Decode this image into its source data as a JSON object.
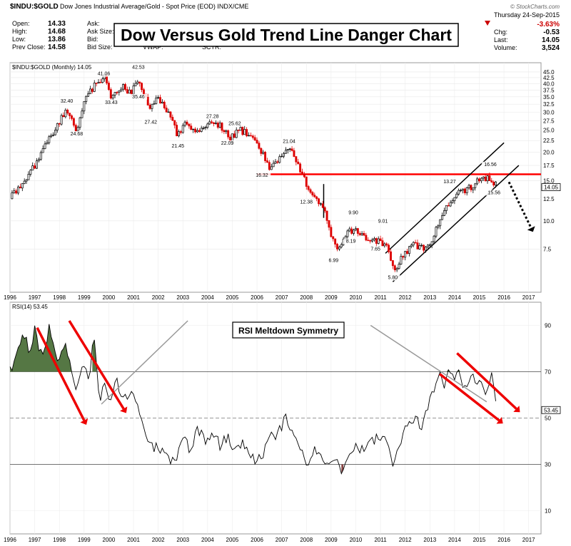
{
  "header": {
    "symbol": "$INDU:$GOLD",
    "description": "Dow Jones Industrial Average/Gold - Spot Price (EOD) INDX/CME",
    "watermark": "© StockCharts.com",
    "date": "Thursday  24-Sep-2015",
    "title_box": "Dow Versus Gold Trend Line Danger Chart",
    "left_quotes": [
      {
        "label": "Open:",
        "value": "14.33"
      },
      {
        "label": "High:",
        "value": "14.68"
      },
      {
        "label": "Low:",
        "value": "13.86"
      },
      {
        "label": "Prev Close:",
        "value": "14.58"
      }
    ],
    "mid_labels": [
      "Ask:",
      "Ask Size:",
      "Bid:",
      "Bid Size:"
    ],
    "mid2_labels": [
      "VWAP:",
      "SCTR:"
    ],
    "right_quotes": [
      {
        "label": "Chg:",
        "value": "-0.53"
      },
      {
        "label": "Last:",
        "value": "14.05"
      },
      {
        "label": "Volume:",
        "value": "3,524"
      }
    ],
    "pct_change": "-3.63%",
    "down_color": "#cc0000"
  },
  "chart_data": [
    {
      "type": "candlestick",
      "legend": "$INDU:$GOLD (Monthly) 14.05",
      "y_scale": "log",
      "ylim": [
        5,
        48
      ],
      "xlim": [
        1996,
        2017.5
      ],
      "y_ticks": [
        45,
        42.5,
        40,
        37.5,
        35,
        32.5,
        30,
        27.5,
        25,
        22.5,
        20,
        17.5,
        15,
        12.5,
        10,
        7.5
      ],
      "y_tick_labels": [
        "45.0",
        "42.5",
        "40.0",
        "37.5",
        "35.0",
        "32.5",
        "30.0",
        "27.5",
        "25.0",
        "22.5",
        "20.0",
        "17.5",
        "15.0",
        "12.5",
        "10.0",
        "7.5"
      ],
      "last_value": "14.05",
      "x_ticks": [
        1996,
        1997,
        1998,
        1999,
        2000,
        2001,
        2002,
        2003,
        2004,
        2005,
        2006,
        2007,
        2008,
        2009,
        2010,
        2011,
        2012,
        2013,
        2014,
        2015,
        2016,
        2017
      ],
      "path": [
        [
          1996.0,
          12.5
        ],
        [
          1996.5,
          14.5
        ],
        [
          1997.0,
          17.5
        ],
        [
          1997.5,
          22.0
        ],
        [
          1998.0,
          27.0
        ],
        [
          1998.3,
          31.0
        ],
        [
          1998.7,
          25.0
        ],
        [
          1999.0,
          33.0
        ],
        [
          1999.4,
          39.0
        ],
        [
          1999.8,
          43.5
        ],
        [
          2000.1,
          34.5
        ],
        [
          2000.5,
          39.0
        ],
        [
          2000.9,
          36.5
        ],
        [
          2001.2,
          41.0
        ],
        [
          2001.7,
          31.0
        ],
        [
          2002.0,
          35.0
        ],
        [
          2002.4,
          30.0
        ],
        [
          2002.8,
          23.5
        ],
        [
          2003.1,
          26.5
        ],
        [
          2003.6,
          24.0
        ],
        [
          2004.0,
          26.5
        ],
        [
          2004.5,
          26.0
        ],
        [
          2004.9,
          23.0
        ],
        [
          2005.3,
          25.0
        ],
        [
          2005.8,
          23.5
        ],
        [
          2006.2,
          20.0
        ],
        [
          2006.5,
          17.0
        ],
        [
          2006.9,
          19.0
        ],
        [
          2007.3,
          20.5
        ],
        [
          2007.6,
          18.5
        ],
        [
          2008.0,
          14.5
        ],
        [
          2008.3,
          13.0
        ],
        [
          2008.7,
          11.5
        ],
        [
          2009.0,
          8.5
        ],
        [
          2009.3,
          7.5
        ],
        [
          2009.7,
          9.0
        ],
        [
          2010.0,
          9.2
        ],
        [
          2010.4,
          8.5
        ],
        [
          2010.8,
          8.2
        ],
        [
          2011.2,
          7.9
        ],
        [
          2011.6,
          6.0
        ],
        [
          2011.9,
          7.0
        ],
        [
          2012.3,
          7.8
        ],
        [
          2012.7,
          7.6
        ],
        [
          2013.0,
          8.0
        ],
        [
          2013.3,
          9.5
        ],
        [
          2013.7,
          11.5
        ],
        [
          2014.0,
          13.0
        ],
        [
          2014.4,
          13.5
        ],
        [
          2014.8,
          14.5
        ],
        [
          2015.1,
          15.5
        ],
        [
          2015.5,
          15.3
        ],
        [
          2015.73,
          14.05
        ]
      ],
      "annotations": [
        {
          "text": "41.06",
          "x": 1999.8,
          "y": 43.5
        },
        {
          "text": "42.53",
          "x": 2001.2,
          "y": 46.5
        },
        {
          "text": "32.40",
          "x": 1998.3,
          "y": 33.0
        },
        {
          "text": "33.43",
          "x": 2000.1,
          "y": 32.5
        },
        {
          "text": "35.46",
          "x": 2001.2,
          "y": 34.5
        },
        {
          "text": "24.68",
          "x": 1998.7,
          "y": 23.7
        },
        {
          "text": "27.42",
          "x": 2001.7,
          "y": 26.7
        },
        {
          "text": "21.45",
          "x": 2002.8,
          "y": 21.0
        },
        {
          "text": "27.28",
          "x": 2004.2,
          "y": 28.3
        },
        {
          "text": "25.62",
          "x": 2005.1,
          "y": 26.3
        },
        {
          "text": "22.09",
          "x": 2004.8,
          "y": 21.6
        },
        {
          "text": "21.04",
          "x": 2007.3,
          "y": 22.0
        },
        {
          "text": "16.32",
          "x": 2006.2,
          "y": 15.6
        },
        {
          "text": "12.38",
          "x": 2008.0,
          "y": 11.9
        },
        {
          "text": "9.90",
          "x": 2009.9,
          "y": 10.7
        },
        {
          "text": "8.19",
          "x": 2009.8,
          "y": 8.0
        },
        {
          "text": "9.01",
          "x": 2011.1,
          "y": 9.8
        },
        {
          "text": "7.65",
          "x": 2010.8,
          "y": 7.4
        },
        {
          "text": "6.99",
          "x": 2009.1,
          "y": 6.6
        },
        {
          "text": "5.80",
          "x": 2011.5,
          "y": 5.55
        },
        {
          "text": "13.27",
          "x": 2013.8,
          "y": 14.6
        },
        {
          "text": "16.56",
          "x": 2015.45,
          "y": 17.4
        },
        {
          "text": "15.56",
          "x": 2015.6,
          "y": 13.1
        }
      ],
      "lines": [
        {
          "color": "#ff0000",
          "from": [
            2006.0,
            16.0
          ],
          "to": [
            2017.5,
            16.0
          ]
        },
        {
          "color": "#000000",
          "from": [
            2011.2,
            7.2
          ],
          "to": [
            2016.0,
            22.0
          ]
        },
        {
          "color": "#000000",
          "from": [
            2011.5,
            5.4
          ],
          "to": [
            2016.6,
            17.5
          ]
        },
        {
          "color": "#000000",
          "from": [
            2008.7,
            14.5
          ],
          "to": [
            2008.7,
            10.3
          ]
        },
        {
          "color": "#000000",
          "style": "dotted-arrow",
          "from": [
            2016.2,
            14.8
          ],
          "to": [
            2017.1,
            9.3
          ]
        }
      ]
    },
    {
      "type": "line",
      "legend": "RSI(14) 53.45",
      "ylim": [
        0,
        100
      ],
      "y_ticks": [
        90,
        70,
        50,
        30,
        10
      ],
      "last_value": "53.45",
      "x_ticks": [
        1996,
        1997,
        1998,
        1999,
        2000,
        2001,
        2002,
        2003,
        2004,
        2005,
        2006,
        2007,
        2008,
        2009,
        2010,
        2011,
        2012,
        2013,
        2014,
        2015,
        2016,
        2017
      ],
      "path": [
        [
          1996.0,
          70
        ],
        [
          1996.3,
          78
        ],
        [
          1996.6,
          86
        ],
        [
          1996.8,
          76
        ],
        [
          1997.0,
          88
        ],
        [
          1997.3,
          76
        ],
        [
          1997.6,
          90
        ],
        [
          1997.9,
          74
        ],
        [
          1998.2,
          82
        ],
        [
          1998.5,
          72
        ],
        [
          1998.7,
          60
        ],
        [
          1998.9,
          72
        ],
        [
          1999.2,
          68
        ],
        [
          1999.4,
          85
        ],
        [
          1999.6,
          58
        ],
        [
          1999.8,
          64
        ],
        [
          2000.0,
          56
        ],
        [
          2000.3,
          66
        ],
        [
          2000.6,
          58
        ],
        [
          2000.9,
          62
        ],
        [
          2001.2,
          55
        ],
        [
          2001.5,
          44
        ],
        [
          2001.8,
          38
        ],
        [
          2002.1,
          35
        ],
        [
          2002.4,
          34
        ],
        [
          2002.7,
          30
        ],
        [
          2003.0,
          42
        ],
        [
          2003.3,
          36
        ],
        [
          2003.6,
          46
        ],
        [
          2003.9,
          40
        ],
        [
          2004.2,
          44
        ],
        [
          2004.5,
          38
        ],
        [
          2004.8,
          42
        ],
        [
          2005.1,
          36
        ],
        [
          2005.4,
          40
        ],
        [
          2005.7,
          33
        ],
        [
          2006.0,
          31
        ],
        [
          2006.3,
          36
        ],
        [
          2006.6,
          42
        ],
        [
          2006.9,
          44
        ],
        [
          2007.2,
          51
        ],
        [
          2007.5,
          40
        ],
        [
          2007.8,
          36
        ],
        [
          2008.1,
          30
        ],
        [
          2008.3,
          36
        ],
        [
          2008.6,
          32
        ],
        [
          2008.9,
          28
        ],
        [
          2009.1,
          34
        ],
        [
          2009.4,
          28
        ],
        [
          2009.7,
          34
        ],
        [
          2010.0,
          37
        ],
        [
          2010.3,
          36
        ],
        [
          2010.6,
          40
        ],
        [
          2010.9,
          42
        ],
        [
          2011.2,
          44
        ],
        [
          2011.5,
          30
        ],
        [
          2011.8,
          38
        ],
        [
          2012.1,
          48
        ],
        [
          2012.4,
          50
        ],
        [
          2012.7,
          46
        ],
        [
          2013.0,
          58
        ],
        [
          2013.2,
          63
        ],
        [
          2013.4,
          72
        ],
        [
          2013.6,
          62
        ],
        [
          2013.8,
          72
        ],
        [
          2014.0,
          64
        ],
        [
          2014.2,
          72
        ],
        [
          2014.4,
          62
        ],
        [
          2014.7,
          70
        ],
        [
          2015.0,
          64
        ],
        [
          2015.3,
          62
        ],
        [
          2015.5,
          68
        ],
        [
          2015.73,
          53
        ]
      ],
      "overbought_fills": [
        [
          1996.0,
          1998.6
        ],
        [
          1999.3,
          1999.55
        ],
        [
          2013.5,
          2014.3
        ],
        [
          2014.8,
          2015.1
        ]
      ],
      "oversold_fills": [
        [
          2008.85,
          2009.0
        ],
        [
          2009.35,
          2009.5
        ]
      ],
      "callout_text": "RSI Meltdown Symmetry",
      "red_arrows": [
        {
          "from": [
            1997.1,
            89
          ],
          "to": [
            1999.0,
            49
          ]
        },
        {
          "from": [
            1998.4,
            92
          ],
          "to": [
            2000.6,
            54
          ]
        },
        {
          "from": [
            2013.4,
            69
          ],
          "to": [
            2015.8,
            49
          ]
        },
        {
          "from": [
            2014.1,
            78
          ],
          "to": [
            2016.5,
            54
          ]
        }
      ],
      "pointer_lines": [
        {
          "from": [
            2003.2,
            92
          ],
          "to": [
            1999.7,
            56
          ]
        },
        {
          "from": [
            2010.6,
            90
          ],
          "to": [
            2015.3,
            57
          ]
        }
      ]
    }
  ],
  "colors": {
    "up_candle": "#000000",
    "down_candle": "#dd0000",
    "rsi_fill": "#557744",
    "trend_red": "#ee0000"
  }
}
